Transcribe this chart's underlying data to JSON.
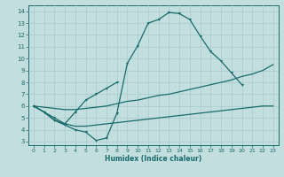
{
  "xlabel": "Humidex (Indice chaleur)",
  "bg_color": "#c2dede",
  "grid_color": "#a8cbcb",
  "line_color": "#1a6b6b",
  "xlim": [
    -0.5,
    23.5
  ],
  "ylim": [
    2.7,
    14.5
  ],
  "xticks": [
    0,
    1,
    2,
    3,
    4,
    5,
    6,
    7,
    8,
    9,
    10,
    11,
    12,
    13,
    14,
    15,
    16,
    17,
    18,
    19,
    20,
    21,
    22,
    23
  ],
  "yticks": [
    3,
    4,
    5,
    6,
    7,
    8,
    9,
    10,
    11,
    12,
    13,
    14
  ],
  "line1_x": [
    0,
    1,
    2,
    3,
    4,
    5,
    6,
    7,
    8,
    9,
    10,
    11,
    12,
    13,
    14,
    15,
    16,
    17,
    18,
    19,
    20
  ],
  "line1_y": [
    6.0,
    5.5,
    4.8,
    4.4,
    4.0,
    3.8,
    3.1,
    3.3,
    5.4,
    9.6,
    11.1,
    13.0,
    13.3,
    13.9,
    13.8,
    13.3,
    11.9,
    10.6,
    9.8,
    8.8,
    7.8
  ],
  "line2_x": [
    0,
    1,
    2,
    3,
    4,
    5,
    6,
    7,
    8,
    9,
    10,
    11,
    12,
    13,
    14,
    15,
    16,
    17,
    18,
    19,
    20,
    21,
    22,
    23
  ],
  "line2_y": [
    6.0,
    5.9,
    5.8,
    5.7,
    5.7,
    5.8,
    5.9,
    6.0,
    6.2,
    6.4,
    6.5,
    6.7,
    6.9,
    7.0,
    7.2,
    7.4,
    7.6,
    7.8,
    8.0,
    8.2,
    8.5,
    8.7,
    9.0,
    9.5
  ],
  "line3_x": [
    0,
    1,
    2,
    3,
    4,
    5,
    6,
    7,
    8,
    9,
    10,
    11,
    12,
    13,
    14,
    15,
    16,
    17,
    18,
    19,
    20,
    21,
    22,
    23
  ],
  "line3_y": [
    6.0,
    5.5,
    4.8,
    4.5,
    4.3,
    4.3,
    4.4,
    4.5,
    4.6,
    4.7,
    4.8,
    4.9,
    5.0,
    5.1,
    5.2,
    5.3,
    5.4,
    5.5,
    5.6,
    5.7,
    5.8,
    5.9,
    6.0,
    6.0
  ],
  "line4_x": [
    0,
    1,
    2,
    3,
    4,
    5,
    6,
    7,
    8
  ],
  "line4_y": [
    6.0,
    5.5,
    5.0,
    4.5,
    5.5,
    6.5,
    7.0,
    7.5,
    8.0
  ]
}
